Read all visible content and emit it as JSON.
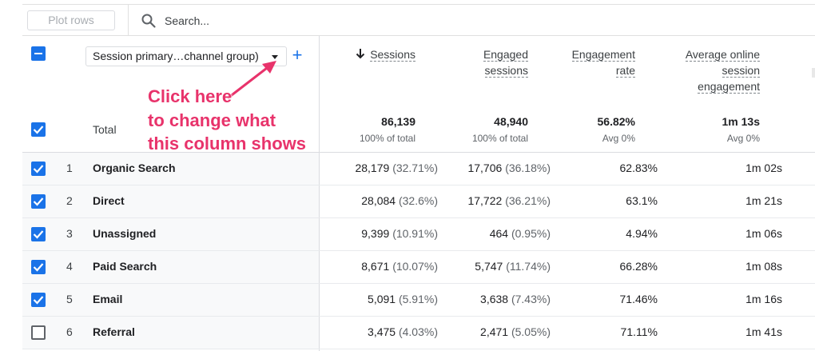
{
  "toolbar": {
    "plot_rows_label": "Plot rows",
    "search_placeholder": "Search..."
  },
  "dimension": {
    "selected": "Session primary…channel group)"
  },
  "columns": [
    {
      "key": "sessions",
      "lines": [
        "Sessions"
      ],
      "sorted": true
    },
    {
      "key": "engaged_sessions",
      "lines": [
        "Engaged",
        "sessions"
      ]
    },
    {
      "key": "engagement_rate",
      "lines": [
        "Engagement",
        "rate"
      ]
    },
    {
      "key": "avg_engagement",
      "lines": [
        "Average online",
        "session",
        "engagement"
      ]
    }
  ],
  "totals": {
    "label": "Total",
    "sessions": "86,139",
    "sessions_sub": "100% of total",
    "engaged": "48,940",
    "engaged_sub": "100% of total",
    "rate": "56.82%",
    "rate_sub": "Avg 0%",
    "time": "1m 13s",
    "time_sub": "Avg 0%"
  },
  "rows": [
    {
      "index": "1",
      "name": "Organic Search",
      "sessions": "28,179",
      "sessions_pct": "(32.71%)",
      "engaged": "17,706",
      "engaged_pct": "(36.18%)",
      "rate": "62.83%",
      "time": "1m 02s",
      "checked": true
    },
    {
      "index": "2",
      "name": "Direct",
      "sessions": "28,084",
      "sessions_pct": "(32.6%)",
      "engaged": "17,722",
      "engaged_pct": "(36.21%)",
      "rate": "63.1%",
      "time": "1m 21s",
      "checked": true
    },
    {
      "index": "3",
      "name": "Unassigned",
      "sessions": "9,399",
      "sessions_pct": "(10.91%)",
      "engaged": "464",
      "engaged_pct": "(0.95%)",
      "rate": "4.94%",
      "time": "1m 06s",
      "checked": true
    },
    {
      "index": "4",
      "name": "Paid Search",
      "sessions": "8,671",
      "sessions_pct": "(10.07%)",
      "engaged": "5,747",
      "engaged_pct": "(11.74%)",
      "rate": "66.28%",
      "time": "1m 08s",
      "checked": true
    },
    {
      "index": "5",
      "name": "Email",
      "sessions": "5,091",
      "sessions_pct": "(5.91%)",
      "engaged": "3,638",
      "engaged_pct": "(7.43%)",
      "rate": "71.46%",
      "time": "1m 16s",
      "checked": true
    },
    {
      "index": "6",
      "name": "Referral",
      "sessions": "3,475",
      "sessions_pct": "(4.03%)",
      "engaged": "2,471",
      "engaged_pct": "(5.05%)",
      "rate": "71.11%",
      "time": "1m 41s",
      "checked": false
    }
  ],
  "annotation": {
    "lines": [
      "Click here",
      "to change what",
      "this column shows"
    ],
    "color": "#e8336b"
  },
  "icons": {
    "search": "search-icon",
    "sort": "arrow-down-icon",
    "dropdown": "chevron-down-icon",
    "add": "plus-icon"
  },
  "colors": {
    "accent": "#1a73e8",
    "annotation": "#e8336b"
  }
}
